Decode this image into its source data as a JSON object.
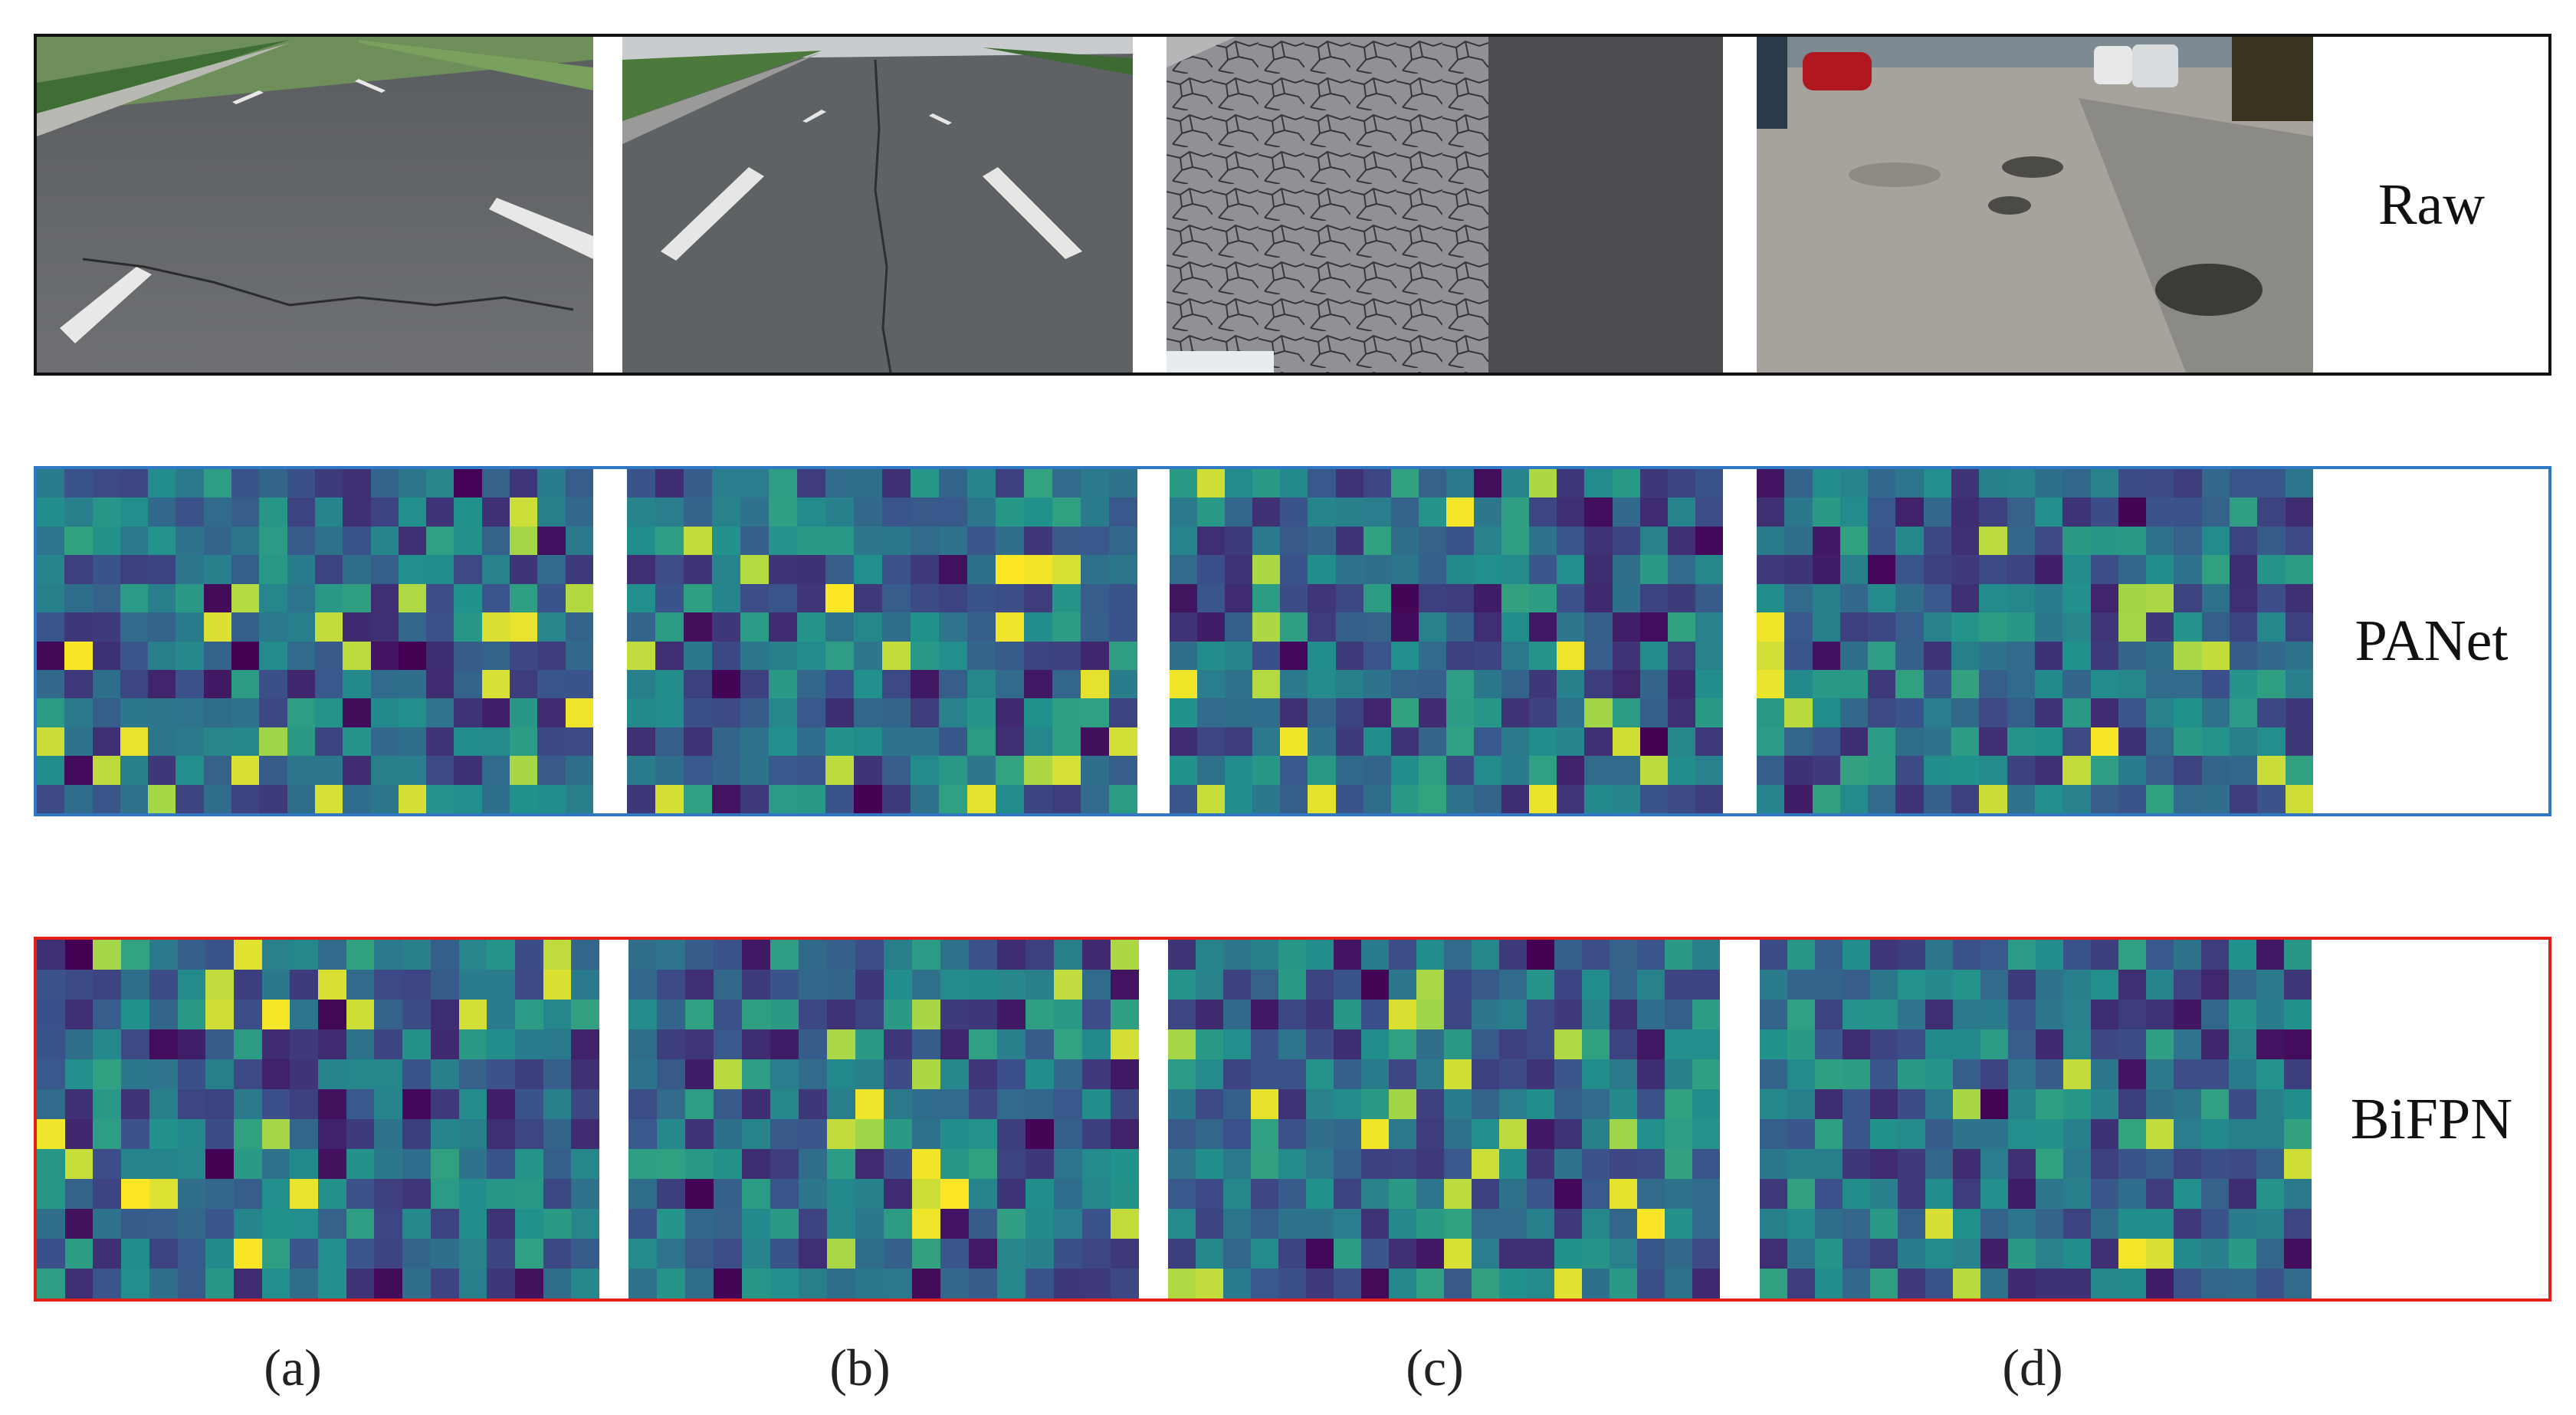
{
  "rows": {
    "raw": {
      "label": "Raw"
    },
    "panet": {
      "label": "PANet"
    },
    "bifpn": {
      "label": "BiFPN"
    }
  },
  "captions": [
    "(a)",
    "(b)",
    "(c)",
    "(d)"
  ],
  "colors": {
    "raw_border": "#111111",
    "panet_border": "#2f78c4",
    "bifpn_border": "#e0201c",
    "viridis_low": "#440154",
    "viridis_mid": "#21918c",
    "viridis_high": "#fde725"
  },
  "panels": {
    "raw": [
      "road-with-transverse-crack",
      "road-with-longitudinal-crack",
      "road-with-alligator-cracking",
      "road-with-potholes"
    ],
    "panet": [
      "heatmap-a",
      "heatmap-b",
      "heatmap-c",
      "heatmap-d"
    ],
    "bifpn": [
      "heatmap-a",
      "heatmap-b",
      "heatmap-c",
      "heatmap-d"
    ]
  }
}
